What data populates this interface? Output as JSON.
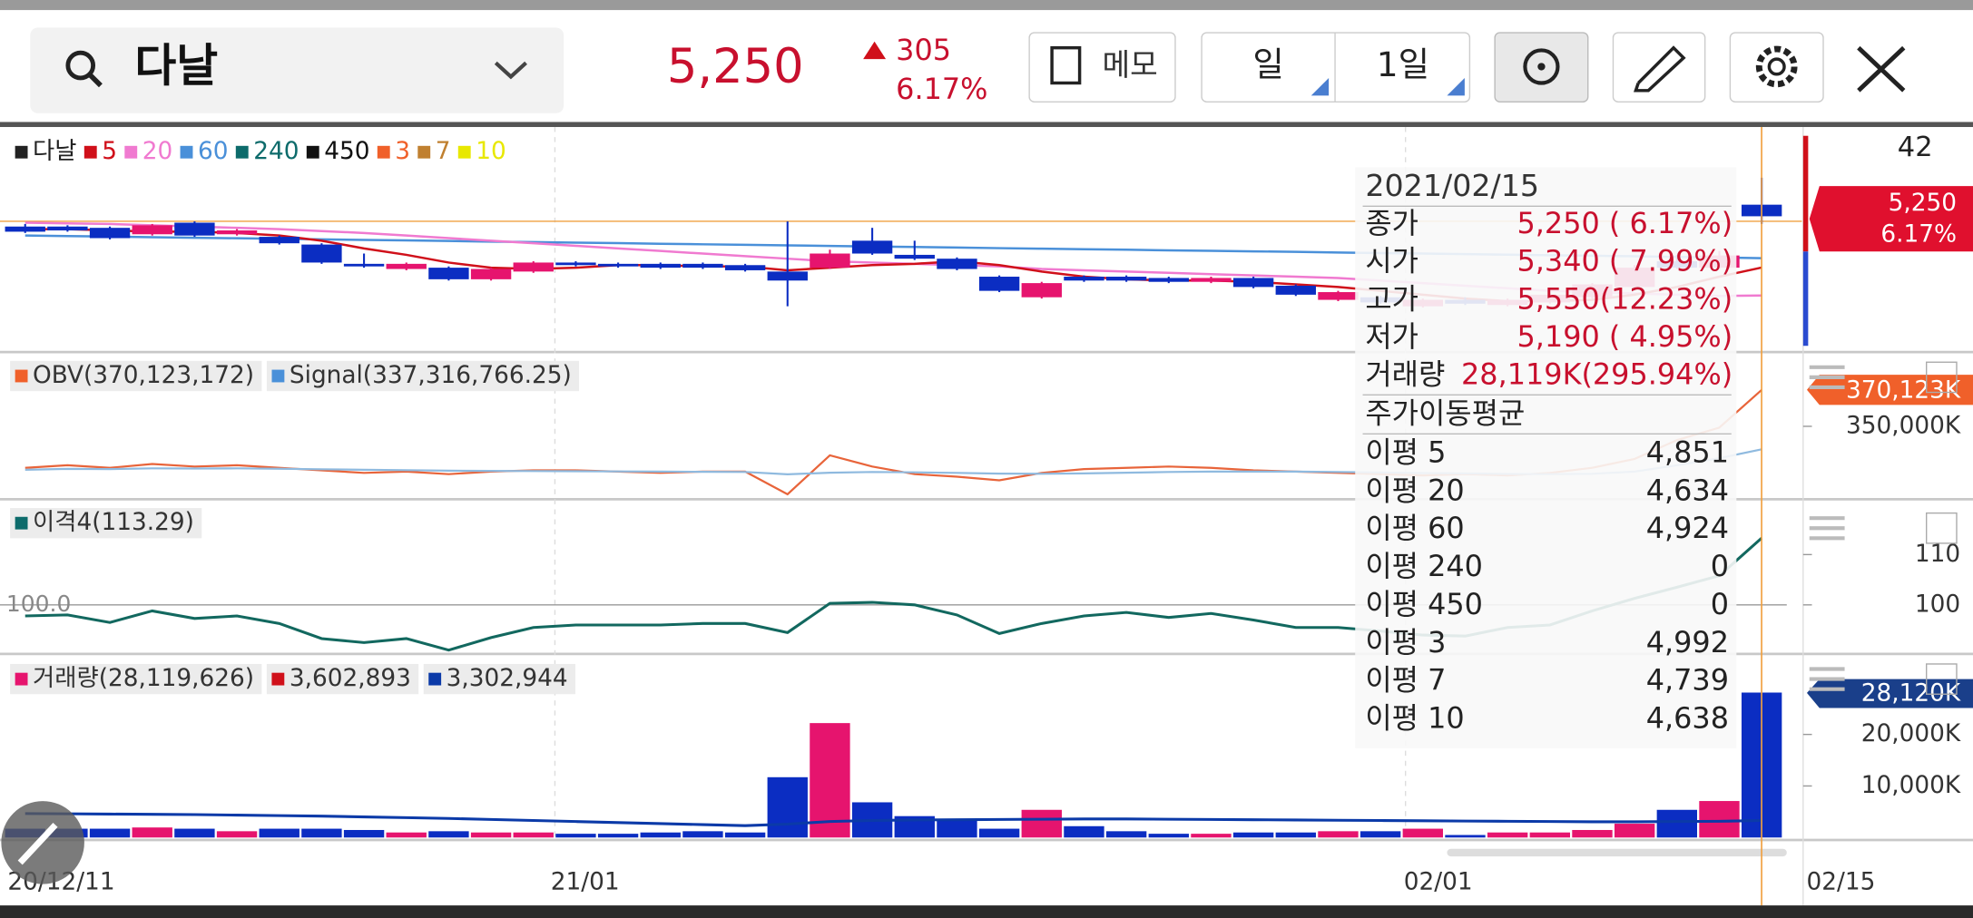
{
  "header": {
    "search": "다날",
    "price": "5,250",
    "change": "305",
    "change_pct": "6.17%",
    "memo": "메모",
    "period": "일",
    "interval": "1일"
  },
  "price_panel": {
    "legend": [
      {
        "name": "다날",
        "color": "#222222"
      },
      {
        "name": "5",
        "color": "#d0101a"
      },
      {
        "name": "20",
        "color": "#f07ad0"
      },
      {
        "name": "60",
        "color": "#4a90d9"
      },
      {
        "name": "240",
        "color": "#0d6b6b"
      },
      {
        "name": "450",
        "color": "#111111"
      },
      {
        "name": "3",
        "color": "#f0602a"
      },
      {
        "name": "7",
        "color": "#c08030"
      },
      {
        "name": "10",
        "color": "#e8e800"
      }
    ],
    "corner": "42",
    "ylim": [
      4213,
      5954
    ],
    "up_color": "#e6146e",
    "down_color": "#0b2dc2",
    "candles": [
      [
        5170,
        5130,
        5190,
        5120
      ],
      [
        5170,
        5140,
        5180,
        5130
      ],
      [
        5160,
        5080,
        5170,
        5070
      ],
      [
        5110,
        5180,
        5190,
        5100
      ],
      [
        5200,
        5100,
        5210,
        5090
      ],
      [
        5110,
        5140,
        5150,
        5100
      ],
      [
        5090,
        5040,
        5100,
        5030
      ],
      [
        5030,
        4890,
        5040,
        4880
      ],
      [
        4880,
        4860,
        4960,
        4850
      ],
      [
        4840,
        4880,
        4890,
        4830
      ],
      [
        4850,
        4760,
        4860,
        4750
      ],
      [
        4760,
        4840,
        4850,
        4750
      ],
      [
        4820,
        4890,
        4900,
        4810
      ],
      [
        4890,
        4870,
        4900,
        4860
      ],
      [
        4880,
        4860,
        4890,
        4850
      ],
      [
        4880,
        4850,
        4890,
        4840
      ],
      [
        4880,
        4850,
        4890,
        4840
      ],
      [
        4870,
        4830,
        4880,
        4820
      ],
      [
        4820,
        4750,
        5210,
        4550
      ],
      [
        4850,
        4960,
        4990,
        4840
      ],
      [
        5060,
        4960,
        5160,
        4950
      ],
      [
        4950,
        4920,
        5060,
        4910
      ],
      [
        4920,
        4840,
        4930,
        4830
      ],
      [
        4780,
        4670,
        4790,
        4660
      ],
      [
        4620,
        4730,
        4740,
        4610
      ],
      [
        4780,
        4750,
        4790,
        4740
      ],
      [
        4780,
        4750,
        4790,
        4740
      ],
      [
        4770,
        4740,
        4780,
        4730
      ],
      [
        4740,
        4770,
        4780,
        4730
      ],
      [
        4770,
        4700,
        4780,
        4690
      ],
      [
        4710,
        4640,
        4720,
        4630
      ],
      [
        4600,
        4660,
        4670,
        4590
      ],
      [
        4620,
        4580,
        4630,
        4570
      ],
      [
        4550,
        4600,
        4610,
        4540
      ],
      [
        4600,
        4570,
        4620,
        4560
      ],
      [
        4560,
        4600,
        4610,
        4550
      ],
      [
        4580,
        4640,
        4650,
        4570
      ],
      [
        4620,
        4720,
        4730,
        4610
      ],
      [
        4700,
        4850,
        4870,
        4690
      ],
      [
        4900,
        4850,
        4950,
        4840
      ],
      [
        4850,
        4945,
        4980,
        4840
      ],
      [
        5340,
        5250,
        5550,
        5190
      ]
    ],
    "lines": [
      {
        "name": "60",
        "color": "#4a90d9",
        "values": [
          5100,
          5096,
          5092,
          5087,
          5083,
          5079,
          5075,
          5070,
          5066,
          5062,
          5058,
          5053,
          5049,
          5045,
          5041,
          5036,
          5032,
          5028,
          5024,
          5019,
          5015,
          5011,
          5007,
          5002,
          4998,
          4994,
          4990,
          4985,
          4981,
          4977,
          4973,
          4968,
          4964,
          4960,
          4956,
          4951,
          4947,
          4943,
          4939,
          4934,
          4930,
          4924
        ]
      },
      {
        "name": "20",
        "color": "#f07ad0",
        "values": [
          5200,
          5195,
          5190,
          5180,
          5170,
          5160,
          5150,
          5135,
          5120,
          5100,
          5080,
          5060,
          5040,
          5020,
          5000,
          4980,
          4960,
          4940,
          4920,
          4900,
          4890,
          4880,
          4870,
          4860,
          4840,
          4830,
          4820,
          4810,
          4800,
          4790,
          4780,
          4770,
          4750,
          4730,
          4710,
          4690,
          4670,
          4660,
          4650,
          4640,
          4630,
          4634
        ]
      },
      {
        "name": "5",
        "color": "#d0101a",
        "values": [
          5150,
          5150,
          5140,
          5130,
          5130,
          5120,
          5100,
          5060,
          5000,
          4950,
          4890,
          4850,
          4840,
          4850,
          4870,
          4870,
          4860,
          4860,
          4830,
          4850,
          4870,
          4880,
          4900,
          4870,
          4820,
          4780,
          4760,
          4750,
          4750,
          4740,
          4720,
          4700,
          4670,
          4640,
          4610,
          4590,
          4590,
          4600,
          4640,
          4700,
          4780,
          4851
        ]
      }
    ],
    "tag_price": "5,250",
    "tag_pct": "6.17%"
  },
  "obv_panel": {
    "legend": [
      {
        "name": "OBV(370,123,172)",
        "color": "#f0602a"
      },
      {
        "name": "Signal(337,316,766.25)",
        "color": "#4a90d9"
      }
    ],
    "ylim": [
      311133,
      388900
    ],
    "yticks": [
      {
        "value": 350000,
        "label": "350,000K"
      }
    ],
    "last_label": "370,123K",
    "series": [
      {
        "name": "OBV",
        "color": "#e8643a",
        "values": [
          327100,
          328500,
          327100,
          329200,
          327800,
          328500,
          327100,
          325700,
          324300,
          325000,
          323600,
          325000,
          325700,
          325700,
          325000,
          324300,
          325000,
          325000,
          312500,
          334000,
          327800,
          323600,
          322200,
          320200,
          324300,
          326400,
          327100,
          327800,
          327100,
          325700,
          325000,
          324300,
          323600,
          322900,
          323600,
          322900,
          324300,
          327100,
          332000,
          342400,
          349300,
          370123
        ]
      },
      {
        "name": "Signal",
        "color": "#8fbadf",
        "values": [
          326000,
          326500,
          326400,
          326800,
          326700,
          326800,
          326600,
          326300,
          326000,
          325800,
          325500,
          325400,
          325300,
          325200,
          325100,
          325000,
          324900,
          324800,
          323500,
          324400,
          324800,
          324600,
          324300,
          323900,
          323800,
          324000,
          324400,
          324800,
          325000,
          325000,
          325000,
          324800,
          324500,
          324200,
          324000,
          323700,
          323600,
          323800,
          325000,
          328500,
          332400,
          337316.766
        ]
      }
    ]
  },
  "disp_panel": {
    "legend": [
      {
        "name": "이격4(113.29)",
        "color": "#0d6b6b"
      }
    ],
    "ylim": [
      90.25,
      120.25
    ],
    "yticks": [
      100,
      110
    ],
    "ref_line": {
      "value": 100,
      "label": "100.0"
    },
    "color": "#12685f",
    "values": [
      97.8,
      98,
      96.5,
      98.8,
      97.3,
      97.8,
      96.3,
      93.3,
      92.5,
      93.3,
      91,
      93.5,
      95.5,
      96,
      96,
      96,
      96.3,
      96.3,
      94.5,
      100.3,
      100.5,
      100,
      98,
      94.3,
      96.3,
      97.8,
      98.5,
      97.5,
      98.3,
      97,
      95.5,
      95.5,
      94.8,
      94,
      93.8,
      95.5,
      96,
      98.8,
      101.3,
      103.5,
      105.8,
      113.29
    ]
  },
  "volume_panel": {
    "legend": [
      {
        "name": "거래량(28,119,626)",
        "color": "#e6146e"
      },
      {
        "name": "3,602,893",
        "color": "#d0101a"
      },
      {
        "name": "3,302,944",
        "color": "#0b3aa8"
      }
    ],
    "ylim": [
      0,
      34400
    ],
    "yticks": [
      {
        "value": 10000,
        "label": "10,000K"
      },
      {
        "value": 20000,
        "label": "20,000K"
      }
    ],
    "last_label": "28,120K",
    "values": [
      1710,
      1710,
      1710,
      1950,
      1710,
      1220,
      1710,
      1710,
      1460,
      980,
      1220,
      980,
      980,
      730,
      730,
      980,
      1220,
      980,
      11700,
      22200,
      6830,
      4150,
      3420,
      1710,
      5370,
      2200,
      1220,
      730,
      730,
      980,
      980,
      1220,
      1220,
      1710,
      490,
      980,
      980,
      1460,
      2680,
      5370,
      7080,
      28120
    ],
    "ma": {
      "color": "#0b3aa8",
      "values": [
        4640,
        4600,
        4550,
        4500,
        4450,
        4350,
        4250,
        4150,
        4000,
        3850,
        3700,
        3500,
        3300,
        3100,
        2900,
        2700,
        2500,
        2300,
        2600,
        3100,
        3300,
        3400,
        3450,
        3500,
        3550,
        3600,
        3600,
        3550,
        3500,
        3450,
        3400,
        3350,
        3300,
        3250,
        3200,
        3150,
        3100,
        3050,
        3050,
        3100,
        3150,
        3303
      ]
    }
  },
  "x_axis": [
    "20/12/11",
    "21/01",
    "02/01",
    "02/15"
  ],
  "tooltip": {
    "date": "2021/02/15",
    "rows": [
      {
        "label": "종가",
        "value": "5,250 ( 6.17%)"
      },
      {
        "label": "시가",
        "value": "5,340 ( 7.99%)"
      },
      {
        "label": "고가",
        "value": "5,550(12.23%)"
      },
      {
        "label": "저가",
        "value": "5,190 ( 4.95%)"
      },
      {
        "label": "거래량",
        "value": "28,119K(295.94%)"
      }
    ],
    "ma_title": "주가이동평균",
    "ma_rows": [
      {
        "label": "이평 5",
        "value": "4,851"
      },
      {
        "label": "이평 20",
        "value": "4,634"
      },
      {
        "label": "이평 60",
        "value": "4,924"
      },
      {
        "label": "이평 240",
        "value": "0"
      },
      {
        "label": "이평 450",
        "value": "0"
      },
      {
        "label": "이평 3",
        "value": "4,992"
      },
      {
        "label": "이평 7",
        "value": "4,739"
      },
      {
        "label": "이평 10",
        "value": "4,638"
      }
    ]
  }
}
